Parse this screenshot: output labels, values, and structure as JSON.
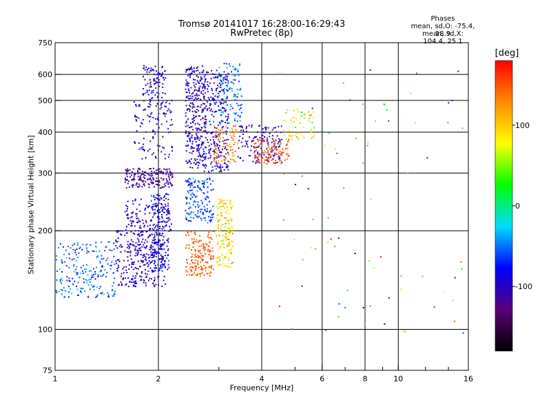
{
  "header": {
    "title_line1": "Tromsø 20141017 16:28:00-16:29:43",
    "title_line2": "RwPretec (8p)"
  },
  "stats": {
    "heading": "Phases",
    "line_o": "mean, sd,O: -75.4, 18.9",
    "line_x": "mean, sd,X: 104.4, 25.1"
  },
  "colorbar": {
    "unit_label": "[deg]",
    "tick_labels": [
      "100",
      "0",
      "-100"
    ],
    "ticks": [
      100,
      0,
      -100
    ],
    "range": [
      -180,
      180
    ],
    "colors": [
      "#000000",
      "#5a0078",
      "#0000ff",
      "#00dcff",
      "#00ff00",
      "#ffff00",
      "#ff8c00",
      "#ff0000"
    ]
  },
  "chart_data": {
    "type": "scatter",
    "title": "Tromsø 20141017 16:28:00-16:29:43",
    "subtitle": "RwPretec (8p)",
    "xlabel": "Frequency [MHz]",
    "ylabel": "Stationary phase Virtual Height [km]",
    "x_scale": "log",
    "y_scale": "log",
    "xlim": [
      1,
      16
    ],
    "ylim": [
      75,
      750
    ],
    "x_ticks": [
      1,
      2,
      4,
      6,
      8,
      10,
      16
    ],
    "x_tick_labels": [
      "1",
      "2",
      "4",
      "6",
      "8",
      "10",
      "16"
    ],
    "x_minor_ticks": [
      3,
      5,
      7,
      9,
      12,
      14
    ],
    "x_gridlines": [
      2,
      4,
      6,
      8,
      10
    ],
    "y_ticks": [
      75,
      100,
      200,
      300,
      400,
      500,
      600,
      750
    ],
    "y_tick_labels": [
      "75",
      "100",
      "200",
      "300",
      "400",
      "500",
      "600",
      "750"
    ],
    "y_gridlines": [
      100,
      200,
      300,
      400,
      500,
      600
    ],
    "grid": true,
    "color_variable": "phase [deg]",
    "color_range": [
      -180,
      180
    ],
    "clusters": [
      {
        "x_range": [
          1.0,
          1.5
        ],
        "y_range": [
          125,
          185
        ],
        "phase_mean": -55,
        "phase_sd": 15,
        "count": 220
      },
      {
        "x_range": [
          1.5,
          2.1
        ],
        "y_range": [
          135,
          200
        ],
        "phase_mean": -95,
        "phase_sd": 10,
        "count": 320
      },
      {
        "x_range": [
          1.9,
          2.15
        ],
        "y_range": [
          150,
          260
        ],
        "phase_mean": -80,
        "phase_sd": 15,
        "count": 160
      },
      {
        "x_range": [
          1.6,
          2.2
        ],
        "y_range": [
          200,
          250
        ],
        "phase_mean": -100,
        "phase_sd": 10,
        "count": 120
      },
      {
        "x_range": [
          1.6,
          2.2
        ],
        "y_range": [
          270,
          310
        ],
        "phase_mean": -115,
        "phase_sd": 8,
        "count": 180
      },
      {
        "x_range": [
          1.7,
          2.2
        ],
        "y_range": [
          330,
          500
        ],
        "phase_mean": -100,
        "phase_sd": 12,
        "count": 120
      },
      {
        "x_range": [
          1.8,
          2.1
        ],
        "y_range": [
          500,
          640
        ],
        "phase_mean": -90,
        "phase_sd": 15,
        "count": 90
      },
      {
        "x_range": [
          2.4,
          2.75
        ],
        "y_range": [
          310,
          640
        ],
        "phase_mean": -100,
        "phase_sd": 15,
        "count": 300
      },
      {
        "x_range": [
          2.7,
          3.2
        ],
        "y_range": [
          300,
          620
        ],
        "phase_mean": -95,
        "phase_sd": 20,
        "count": 260
      },
      {
        "x_range": [
          3.0,
          3.5
        ],
        "y_range": [
          420,
          650
        ],
        "phase_mean": -55,
        "phase_sd": 20,
        "count": 120
      },
      {
        "x_range": [
          2.9,
          3.4
        ],
        "y_range": [
          320,
          420
        ],
        "phase_mean": 130,
        "phase_sd": 15,
        "count": 90
      },
      {
        "x_range": [
          3.4,
          4.6
        ],
        "y_range": [
          320,
          420
        ],
        "phase_mean": -105,
        "phase_sd": 10,
        "count": 150
      },
      {
        "x_range": [
          3.8,
          4.8
        ],
        "y_range": [
          320,
          380
        ],
        "phase_mean": 148,
        "phase_sd": 8,
        "count": 100
      },
      {
        "x_range": [
          4.6,
          5.7
        ],
        "y_range": [
          380,
          470
        ],
        "phase_mean": 90,
        "phase_sd": 35,
        "count": 60
      },
      {
        "x_range": [
          2.4,
          2.9
        ],
        "y_range": [
          210,
          290
        ],
        "phase_mean": -60,
        "phase_sd": 15,
        "count": 160
      },
      {
        "x_range": [
          2.4,
          2.9
        ],
        "y_range": [
          145,
          200
        ],
        "phase_mean": 148,
        "phase_sd": 10,
        "count": 170
      },
      {
        "x_range": [
          2.95,
          3.3
        ],
        "y_range": [
          155,
          250
        ],
        "phase_mean": 90,
        "phase_sd": 25,
        "count": 160
      },
      {
        "x_range": [
          4.5,
          16
        ],
        "y_range": [
          95,
          620
        ],
        "phase_mean": 0,
        "phase_sd": 100,
        "count": 80
      }
    ]
  }
}
